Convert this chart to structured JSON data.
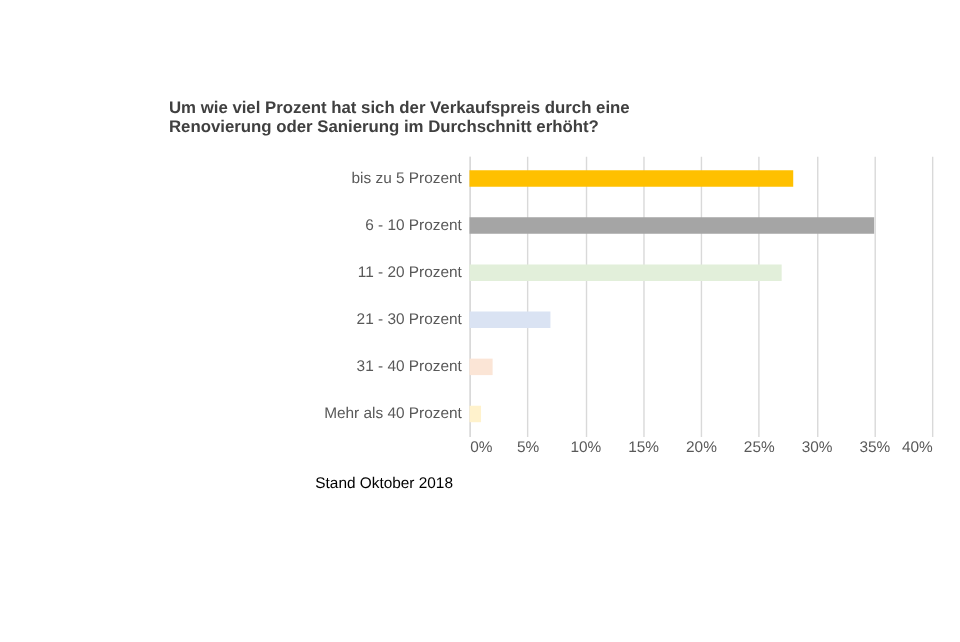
{
  "chart_data": {
    "type": "bar",
    "orientation": "horizontal",
    "title": "Um wie viel Prozent hat sich der Verkaufspreis durch eine\nRenovierung oder Sanierung im Durchschnitt erhöht?",
    "categories": [
      "bis zu 5 Prozent",
      "6 - 10 Prozent",
      "11 - 20 Prozent",
      "21 - 30 Prozent",
      "31 - 40 Prozent",
      "Mehr als 40 Prozent"
    ],
    "values": [
      28,
      35,
      27,
      7,
      2,
      1
    ],
    "colors": [
      "#ffc000",
      "#a5a5a5",
      "#e2efda",
      "#dae3f3",
      "#fbe5d6",
      "#fff2cc"
    ],
    "xlim": [
      0,
      40
    ],
    "xticks": [
      {
        "value": 0,
        "label": "0%"
      },
      {
        "value": 5,
        "label": "5%"
      },
      {
        "value": 10,
        "label": "10%"
      },
      {
        "value": 15,
        "label": "15%"
      },
      {
        "value": 20,
        "label": "20%"
      },
      {
        "value": 25,
        "label": "25%"
      },
      {
        "value": 30,
        "label": "30%"
      },
      {
        "value": 35,
        "label": "35%"
      },
      {
        "value": 40,
        "label": "40%"
      }
    ],
    "grid": "x",
    "annotations": [
      "Stand Oktober 2018"
    ]
  }
}
